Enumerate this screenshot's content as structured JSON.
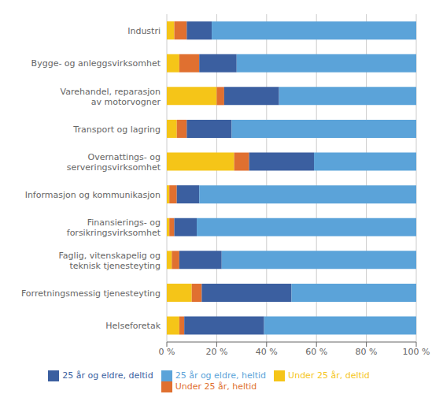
{
  "chart_data": {
    "type": "bar",
    "orientation": "horizontal",
    "stacked": true,
    "grid": true,
    "legend": "bottom",
    "categories": [
      "Industri",
      "Bygge- og anleggsvirksomhet",
      "Varehandel, reparasjon\nav motorvogner",
      "Transport og lagring",
      "Overnattings- og\nserveringsvirksomhet",
      "Informasjon og kommunikasjon",
      "Finansierings- og\nforsikringsvirksomhet",
      "Faglig, vitenskapelig og\nteknisk tjenesteyting",
      "Forretningsmessig tjenesteyting",
      "Helseforetak"
    ],
    "series": [
      {
        "name": "Under 25 år, deltid",
        "color": "#F5C518",
        "values": [
          3,
          5,
          20,
          4,
          27,
          1,
          1,
          2,
          10,
          5
        ]
      },
      {
        "name": "Under 25 år, heltid",
        "color": "#E07030",
        "values": [
          5,
          8,
          3,
          4,
          6,
          3,
          2,
          3,
          4,
          2
        ]
      },
      {
        "name": "25 år og eldre, deltid",
        "color": "#3B5FA0",
        "values": [
          10,
          15,
          22,
          18,
          26,
          9,
          9,
          17,
          36,
          32
        ]
      },
      {
        "name": "25 år og eldre, heltid",
        "color": "#5BA3D9",
        "values": [
          82,
          72,
          55,
          74,
          41,
          87,
          88,
          78,
          50,
          61
        ]
      }
    ],
    "xlim": [
      0,
      100
    ],
    "xticks": [
      {
        "value": 0,
        "label": "0 %"
      },
      {
        "value": 20,
        "label": "20 %"
      },
      {
        "value": 40,
        "label": "40 %"
      },
      {
        "value": 60,
        "label": "60 %"
      },
      {
        "value": 80,
        "label": "80 %"
      },
      {
        "value": 100,
        "label": "100 %"
      }
    ]
  }
}
